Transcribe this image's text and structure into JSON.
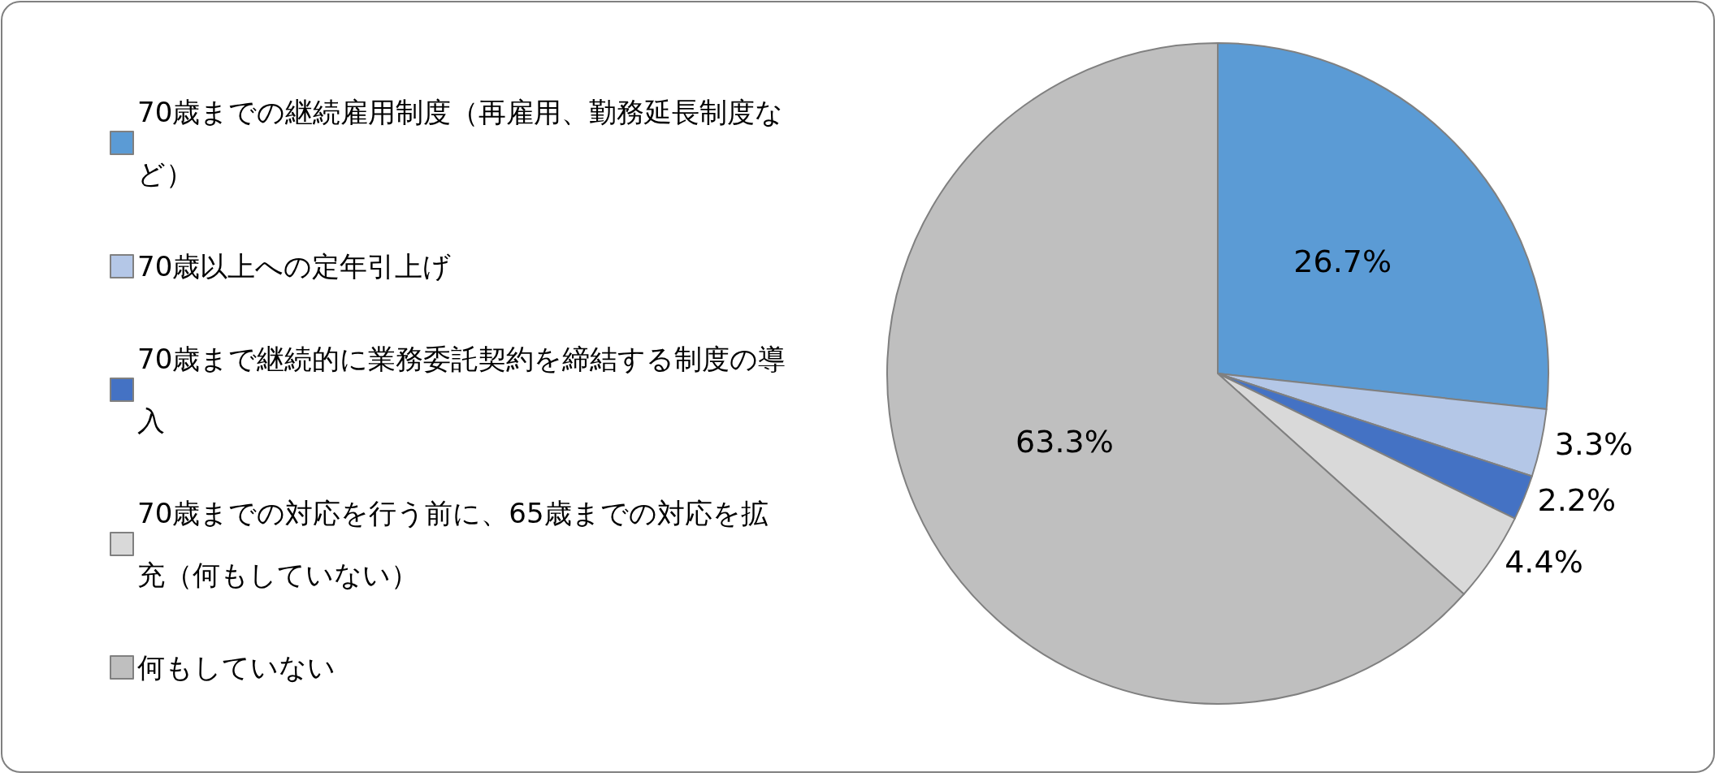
{
  "chart_data": {
    "type": "pie",
    "categories": [
      "70歳までの継続雇用制度（再雇用、勤務延長制度など）",
      "70歳以上への定年引上げ",
      "70歳まで継続的に業務委託契約を締結する制度の導入",
      "70歳までの対応を行う前に、65歳までの対応を拡充（何もしていない）",
      "何もしていない"
    ],
    "values": [
      26.7,
      3.3,
      2.2,
      4.4,
      63.3
    ],
    "value_labels": [
      "26.7%",
      "3.3%",
      "2.2%",
      "4.4%",
      "63.3%"
    ],
    "colors": [
      "#5b9bd5",
      "#b4c7e7",
      "#4472c4",
      "#d9d9d9",
      "#bfbfbf"
    ],
    "legend": "left"
  }
}
